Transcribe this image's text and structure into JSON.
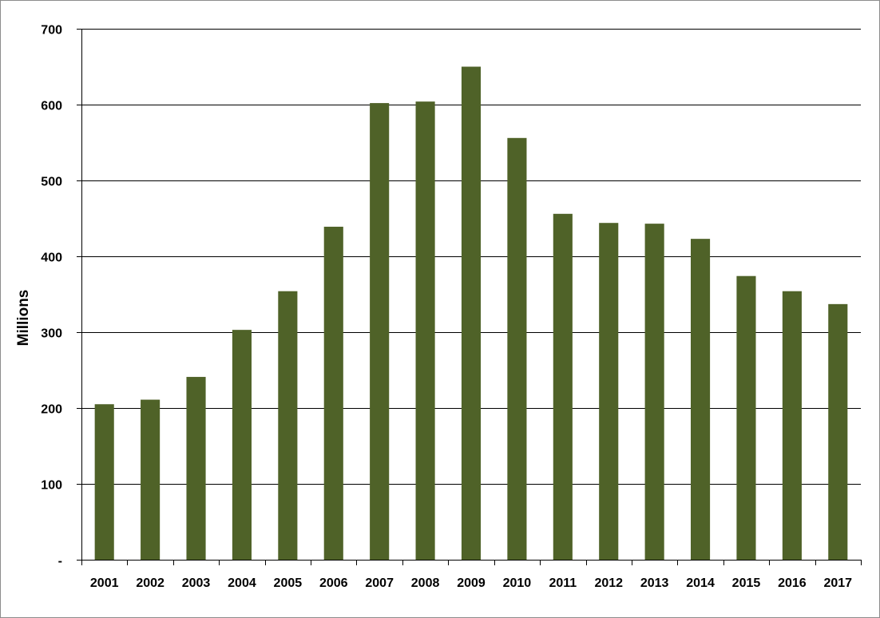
{
  "chart_data": {
    "type": "bar",
    "title": "",
    "xlabel": "",
    "ylabel": "Millions",
    "categories": [
      "2001",
      "2002",
      "2003",
      "2004",
      "2005",
      "2006",
      "2007",
      "2008",
      "2009",
      "2010",
      "2011",
      "2012",
      "2013",
      "2014",
      "2015",
      "2016",
      "2017"
    ],
    "values": [
      205,
      211,
      241,
      303,
      354,
      439,
      602,
      604,
      650,
      556,
      456,
      444,
      443,
      423,
      374,
      354,
      337
    ],
    "ylim": [
      0,
      700
    ],
    "y_ticks": [
      0,
      100,
      200,
      300,
      400,
      500,
      600,
      700
    ],
    "y_tick_labels": [
      "-",
      "100",
      "200",
      "300",
      "400",
      "500",
      "600",
      "700"
    ],
    "grid": true,
    "legend": "none",
    "bar_color": "#4f6228"
  }
}
